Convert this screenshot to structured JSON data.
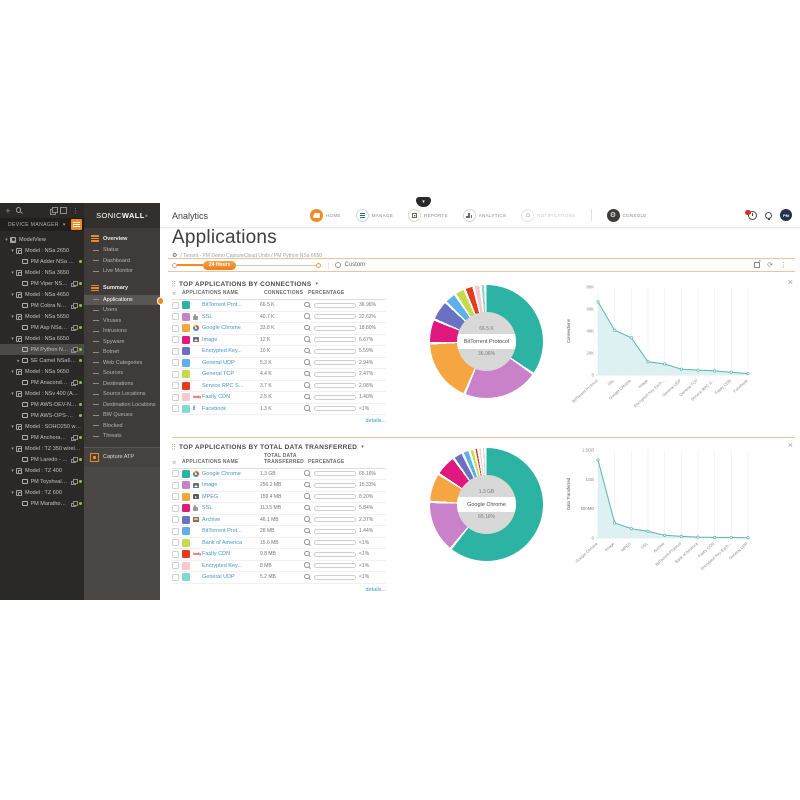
{
  "device_panel": {
    "header": "DEVICE MANAGER",
    "tree": [
      {
        "label": "ModelView",
        "level": 0,
        "caret": "down",
        "box": "folder"
      },
      {
        "label": "Model : NSa 2650",
        "level": 1,
        "caret": "down",
        "box": "model"
      },
      {
        "label": "PM Adder NSa 2650",
        "level": 2,
        "box": "device",
        "dot": true
      },
      {
        "label": "Model : NSa 3650",
        "level": 1,
        "caret": "down",
        "box": "model"
      },
      {
        "label": "PM Viper NSa 3...",
        "level": 2,
        "box": "device",
        "link": true,
        "dot": true
      },
      {
        "label": "Model : NSa 4650",
        "level": 1,
        "caret": "down",
        "box": "model"
      },
      {
        "label": "PM Cobra NSa ...",
        "level": 2,
        "box": "device",
        "link": true,
        "dot": true
      },
      {
        "label": "Model : NSa 5650",
        "level": 1,
        "caret": "down",
        "box": "model"
      },
      {
        "label": "PM Asp NSa 56...",
        "level": 2,
        "box": "device",
        "link": true,
        "dot": true
      },
      {
        "label": "Model : NSa 6650",
        "level": 1,
        "caret": "down",
        "box": "model"
      },
      {
        "label": "PM Python NSa...",
        "level": 2,
        "box": "device",
        "link": true,
        "dot": true,
        "selected": true
      },
      {
        "label": "SE Camel NSa6650",
        "level": 2,
        "caret": "right",
        "box": "device",
        "dot": true
      },
      {
        "label": "Model : NSa 9650",
        "level": 1,
        "caret": "down",
        "box": "model"
      },
      {
        "label": "PM Anaconda ...",
        "level": 2,
        "box": "device",
        "link": true,
        "dot": true
      },
      {
        "label": "Model : NSv 400 (AWS)",
        "level": 1,
        "caret": "down",
        "box": "model"
      },
      {
        "label": "PM AWS-DEV-NS...",
        "level": 2,
        "box": "device",
        "dot": true
      },
      {
        "label": "PM AWS-OPS-NS...",
        "level": 2,
        "box": "device",
        "dot": true
      },
      {
        "label": "Model : SOHO250 wirele...",
        "level": 1,
        "caret": "down",
        "box": "model"
      },
      {
        "label": "PM Anchorage ...",
        "level": 2,
        "box": "device",
        "link": true,
        "dot": true
      },
      {
        "label": "Model : TZ 350 wireless ...",
        "level": 1,
        "caret": "down",
        "box": "model"
      },
      {
        "label": "PM Laredo - TZ...",
        "level": 2,
        "box": "device",
        "link": true,
        "dot": true
      },
      {
        "label": "Model : TZ 400",
        "level": 1,
        "caret": "down",
        "box": "model"
      },
      {
        "label": "PM Toyshvale T...",
        "level": 2,
        "box": "device",
        "link": true,
        "dot": true
      },
      {
        "label": "Model : TZ 600",
        "level": 1,
        "caret": "down",
        "box": "model"
      },
      {
        "label": "PM Marathon T...",
        "level": 2,
        "box": "device",
        "link": true,
        "dot": true
      }
    ]
  },
  "brand": {
    "logo_regular": "SONIC",
    "logo_bold": "WALL",
    "logo_mark": "®"
  },
  "nav_sidebar": {
    "groups": [
      {
        "header": "Overview",
        "items": [
          {
            "label": "Status"
          },
          {
            "label": "Dashboard"
          },
          {
            "label": "Live Monitor"
          }
        ]
      },
      {
        "header": "Summary",
        "items": [
          {
            "label": "Applications",
            "selected": true
          },
          {
            "label": "Users"
          },
          {
            "label": "Viruses"
          },
          {
            "label": "Intrusions"
          },
          {
            "label": "Spyware"
          },
          {
            "label": "Botnet"
          },
          {
            "label": "Web Categories"
          },
          {
            "label": "Sources"
          },
          {
            "label": "Destinations"
          },
          {
            "label": "Source Locations"
          },
          {
            "label": "Destination Locations"
          },
          {
            "label": "BW Queues"
          },
          {
            "label": "Blocked"
          },
          {
            "label": "Threats"
          }
        ]
      }
    ],
    "capture_atp": "Capture ATP"
  },
  "topbar": {
    "product": "Analytics",
    "nav": [
      {
        "label": "HOME",
        "style": "home"
      },
      {
        "label": "MANAGE",
        "style": "manage"
      },
      {
        "label": "REPORTS",
        "style": "reports"
      },
      {
        "label": "ANALYTICS",
        "style": "analytics"
      },
      {
        "label": "NOTIFICATIONS",
        "style": "notifications",
        "disabled": true
      },
      {
        "label": "CONSOLE",
        "style": "console"
      }
    ],
    "avatar": "PM"
  },
  "page": {
    "title": "Applications",
    "breadcrumb": "/ Tenant - PM Demo CaptureCloud Units / PM Python NSa 6650",
    "time_pill": "24 Hours",
    "custom": "Custom"
  },
  "palette": [
    "#2cb3a4",
    "#c982c9",
    "#f6a640",
    "#e1197e",
    "#6a71c1",
    "#5fb0e8",
    "#c6d94f",
    "#e63a1e",
    "#f7c9cd",
    "#82d8d2"
  ],
  "accent": "#f08b24",
  "sections": [
    {
      "title": "TOP APPLICATIONS BY CONNECTIONS",
      "columns": [
        "APPLICATIONS NAME",
        "CONNECTIONS",
        "PERCENTAGE"
      ],
      "details": "details...",
      "rows": [
        {
          "name": "BitTorrent Prot...",
          "icon": "none",
          "value": "66.5 K",
          "pct": "36.96%",
          "pct_num": 36.96
        },
        {
          "name": "SSL",
          "icon": "lock",
          "value": "40.7 K",
          "pct": "22.62%",
          "pct_num": 22.62
        },
        {
          "name": "Google Chrome",
          "icon": "chrome",
          "value": "33.8 K",
          "pct": "18.80%",
          "pct_num": 18.8
        },
        {
          "name": "Image",
          "icon": "image",
          "value": "12 K",
          "pct": "6.67%",
          "pct_num": 6.67
        },
        {
          "name": "Encrypted Key...",
          "icon": "none",
          "value": "10 K",
          "pct": "5.59%",
          "pct_num": 5.59
        },
        {
          "name": "General UDP",
          "icon": "none",
          "value": "5.3 K",
          "pct": "2.94%",
          "pct_num": 2.94
        },
        {
          "name": "General TCP",
          "icon": "none",
          "value": "4.4 K",
          "pct": "2.47%",
          "pct_num": 2.47
        },
        {
          "name": "Service RPC S...",
          "icon": "none",
          "value": "3.7 K",
          "pct": "2.08%",
          "pct_num": 2.08
        },
        {
          "name": "Fastly CDN",
          "icon": "fastly",
          "value": "2.5 K",
          "pct": "1.40%",
          "pct_num": 1.4
        },
        {
          "name": "Facebook",
          "icon": "facebook",
          "value": "1.3 K",
          "pct": "<1%",
          "pct_num": 0.72
        }
      ],
      "donut": {
        "center_value": "66.5 K",
        "center_label": "BitTorrent Protocol",
        "center_pct": "36.96%"
      },
      "line": {
        "ylabel": "Connections",
        "ymax": 80000,
        "yticks": [
          {
            "v": 0,
            "label": "0"
          },
          {
            "v": 20000,
            "label": "20K"
          },
          {
            "v": 40000,
            "label": "40K"
          },
          {
            "v": 60000,
            "label": "60K"
          },
          {
            "v": 80000,
            "label": "80K"
          }
        ],
        "x_labels": [
          "BitTorrent Protocol",
          "SSL",
          "Google Chrome",
          "Image",
          "Encrypted Key Exch...",
          "General UDP",
          "General TCP",
          "Service RPC S...",
          "Fastly CDN",
          "Facebook"
        ],
        "values": [
          66500,
          40700,
          33800,
          12000,
          10000,
          5300,
          4400,
          3700,
          2500,
          1300
        ]
      }
    },
    {
      "title": "TOP APPLICATIONS BY TOTAL DATA TRANSFERRED",
      "columns": [
        "APPLICATIONS NAME",
        "TOTAL DATA TRANSFERRED",
        "PERCENTAGE"
      ],
      "details": "details...",
      "rows": [
        {
          "name": "Google Chrome",
          "icon": "chrome",
          "value": "1.3 GB",
          "pct": "65.16%",
          "pct_num": 65.16
        },
        {
          "name": "Image",
          "icon": "image",
          "value": "256.2 MB",
          "pct": "15.33%",
          "pct_num": 15.33
        },
        {
          "name": "MPEG",
          "icon": "mpeg",
          "value": "159.4 MB",
          "pct": "8.20%",
          "pct_num": 8.2
        },
        {
          "name": "SSL",
          "icon": "lock",
          "value": "113.5 MB",
          "pct": "5.84%",
          "pct_num": 5.84
        },
        {
          "name": "Archive",
          "icon": "archive",
          "value": "46.1 MB",
          "pct": "2.37%",
          "pct_num": 2.37
        },
        {
          "name": "BitTorrent Prot...",
          "icon": "none",
          "value": "28 MB",
          "pct": "1.44%",
          "pct_num": 1.44
        },
        {
          "name": "Bank of America",
          "icon": "none",
          "value": "15.6 MB",
          "pct": "<1%",
          "pct_num": 0.76
        },
        {
          "name": "Fastly CDN",
          "icon": "fastly",
          "value": "9.8 MB",
          "pct": "<1%",
          "pct_num": 0.48
        },
        {
          "name": "Encrypted Key...",
          "icon": "none",
          "value": "8 MB",
          "pct": "<1%",
          "pct_num": 0.39
        },
        {
          "name": "General UDP",
          "icon": "none",
          "value": "5.2 MB",
          "pct": "<1%",
          "pct_num": 0.25
        }
      ],
      "donut": {
        "center_value": "1.3 GB",
        "center_label": "Google Chrome",
        "center_pct": "65.16%"
      },
      "line": {
        "ylabel": "Data Transferred",
        "ymax": 1500,
        "yticks": [
          {
            "v": 0,
            "label": "0"
          },
          {
            "v": 500,
            "label": "500MB"
          },
          {
            "v": 1000,
            "label": "1GB"
          },
          {
            "v": 1500,
            "label": "1.5GB"
          }
        ],
        "x_labels": [
          "Google Chrome",
          "Image",
          "MPEG",
          "SSL",
          "Archive",
          "BitTorrent Protocol",
          "Bank of America",
          "Fastly CDN",
          "Encrypted Key Exch...",
          "General UDP"
        ],
        "values": [
          1331,
          256.2,
          159.4,
          113.5,
          46.1,
          28,
          15.6,
          9.8,
          8,
          5.2
        ]
      }
    }
  ]
}
